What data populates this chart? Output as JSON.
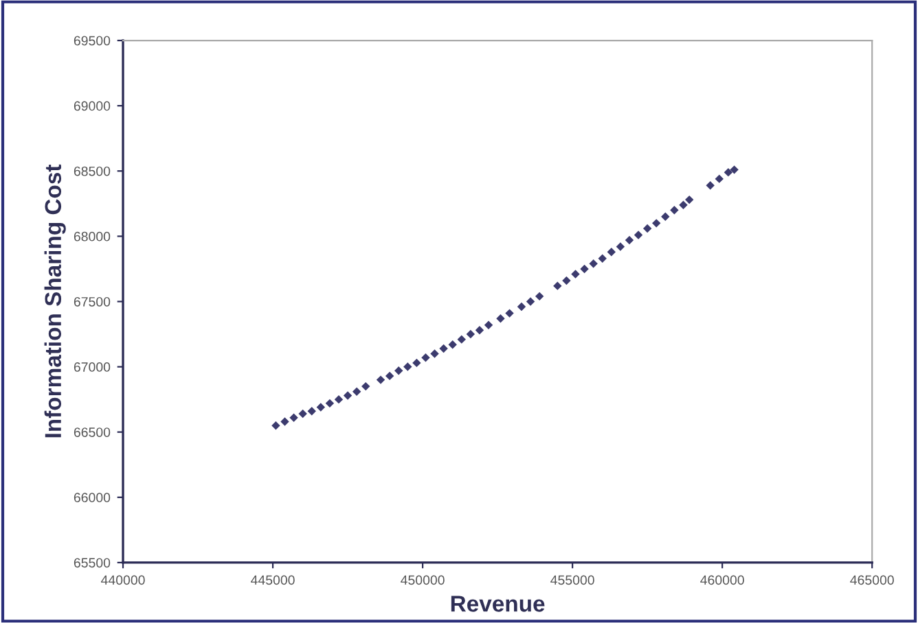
{
  "chart_data": {
    "type": "scatter",
    "xlabel": "Revenue",
    "ylabel": "Information Sharing Cost",
    "x": [
      445100,
      445400,
      445700,
      446000,
      446300,
      446600,
      446900,
      447200,
      447500,
      447800,
      448100,
      448600,
      448900,
      449200,
      449500,
      449800,
      450100,
      450400,
      450700,
      451000,
      451300,
      451600,
      451900,
      452200,
      452600,
      452900,
      453300,
      453600,
      453900,
      454500,
      454800,
      455100,
      455400,
      455700,
      456000,
      456300,
      456600,
      456900,
      457200,
      457500,
      457800,
      458100,
      458400,
      458700,
      458900,
      459600,
      459900,
      460200,
      460400
    ],
    "series": [
      {
        "color": "#3c3b6e",
        "values": [
          66550,
          66580,
          66610,
          66640,
          66660,
          66690,
          66720,
          66750,
          66780,
          66810,
          66850,
          66900,
          66930,
          66970,
          67000,
          67030,
          67070,
          67100,
          67140,
          67170,
          67210,
          67250,
          67280,
          67320,
          67370,
          67410,
          67460,
          67500,
          67540,
          67620,
          67660,
          67710,
          67750,
          67790,
          67830,
          67880,
          67920,
          67970,
          68010,
          68060,
          68100,
          68150,
          68200,
          68240,
          68280,
          68390,
          68440,
          68490,
          68510
        ]
      }
    ],
    "marker": "diamond",
    "xlim": [
      440000,
      465000
    ],
    "xticks": [
      440000,
      445000,
      450000,
      455000,
      460000,
      465000
    ],
    "ylim": [
      65500,
      69500
    ],
    "yticks": [
      65500,
      66000,
      66500,
      67000,
      67500,
      68000,
      68500,
      69000,
      69500
    ],
    "grid": false
  }
}
